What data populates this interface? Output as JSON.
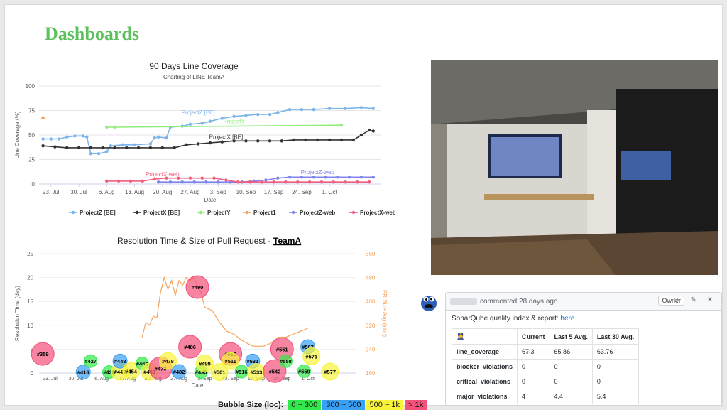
{
  "page": {
    "title": "Dashboards"
  },
  "chart_data": [
    {
      "type": "line",
      "title": "90 Days Line Coverage",
      "subtitle": "Charting of LINE TeamA",
      "xlabel": "Date",
      "ylabel": "Line Coverage (%)",
      "ylim": [
        0,
        100
      ],
      "yticks": [
        0,
        25,
        50,
        75,
        100
      ],
      "x_ticks": [
        "23. Jul",
        "30. Jul",
        "6. Aug",
        "13. Aug",
        "20. Aug",
        "27. Aug",
        "3. Sep",
        "10. Sep",
        "17. Sep",
        "24. Sep",
        "1. Oct"
      ],
      "xlim": [
        -3,
        83
      ],
      "series": [
        {
          "name": "ProjectZ [BE]",
          "color": "#7cb5ec",
          "label": "ProjectZ [BE]",
          "label_at": [
            37,
            71
          ],
          "points": [
            [
              -2,
              46
            ],
            [
              0,
              46
            ],
            [
              2,
              46
            ],
            [
              4,
              48
            ],
            [
              6,
              49
            ],
            [
              8,
              49
            ],
            [
              9,
              48
            ],
            [
              10,
              31
            ],
            [
              12,
              31
            ],
            [
              14,
              33
            ],
            [
              15,
              39
            ],
            [
              18,
              40
            ],
            [
              21,
              40
            ],
            [
              25,
              41
            ],
            [
              26,
              47
            ],
            [
              27,
              48
            ],
            [
              29,
              47
            ],
            [
              30,
              58
            ],
            [
              33,
              59
            ],
            [
              35,
              61
            ],
            [
              38,
              62
            ],
            [
              40,
              64
            ],
            [
              43,
              67
            ],
            [
              46,
              69
            ],
            [
              49,
              70
            ],
            [
              52,
              71
            ],
            [
              55,
              71
            ],
            [
              57,
              73
            ],
            [
              60,
              76
            ],
            [
              63,
              76
            ],
            [
              66,
              76
            ],
            [
              70,
              77
            ],
            [
              74,
              77
            ],
            [
              78,
              78
            ],
            [
              81,
              77
            ]
          ]
        },
        {
          "name": "ProjectX [BE]",
          "color": "#333333",
          "label": "ProjectX [BE]",
          "label_at": [
            44,
            46
          ],
          "points": [
            [
              -2,
              39
            ],
            [
              1,
              38
            ],
            [
              4,
              37
            ],
            [
              7,
              37
            ],
            [
              10,
              37
            ],
            [
              13,
              37
            ],
            [
              16,
              37
            ],
            [
              19,
              37
            ],
            [
              22,
              37
            ],
            [
              25,
              37
            ],
            [
              28,
              37
            ],
            [
              31,
              37
            ],
            [
              34,
              40
            ],
            [
              37,
              41
            ],
            [
              40,
              42
            ],
            [
              43,
              43
            ],
            [
              46,
              44
            ],
            [
              49,
              44
            ],
            [
              52,
              44
            ],
            [
              55,
              44
            ],
            [
              58,
              44
            ],
            [
              61,
              45
            ],
            [
              64,
              45
            ],
            [
              67,
              45
            ],
            [
              70,
              45
            ],
            [
              73,
              45
            ],
            [
              76,
              45
            ],
            [
              78,
              50
            ],
            [
              80,
              55
            ],
            [
              81,
              54
            ]
          ]
        },
        {
          "name": "ProjectY",
          "color": "#90ed7d",
          "label": "ProjectY",
          "label_at": [
            46,
            62
          ],
          "points": [
            [
              14,
              58
            ],
            [
              16,
              58
            ],
            [
              73,
              60
            ]
          ]
        },
        {
          "name": "Project1",
          "color": "#f7a35c",
          "label": "",
          "label_at": null,
          "points": [
            [
              -2,
              68
            ]
          ]
        },
        {
          "name": "ProjectZ-web",
          "color": "#8085e9",
          "label": "ProjectZ-web",
          "label_at": [
            67,
            10
          ],
          "points": [
            [
              27,
              2
            ],
            [
              30,
              2
            ],
            [
              33,
              2
            ],
            [
              36,
              2
            ],
            [
              39,
              2
            ],
            [
              42,
              2
            ],
            [
              45,
              2
            ],
            [
              48,
              2
            ],
            [
              51,
              3
            ],
            [
              54,
              4
            ],
            [
              57,
              6
            ],
            [
              60,
              7
            ],
            [
              63,
              7
            ],
            [
              66,
              7
            ],
            [
              69,
              7
            ],
            [
              72,
              7
            ],
            [
              75,
              7
            ],
            [
              78,
              7
            ],
            [
              81,
              7
            ]
          ]
        },
        {
          "name": "ProjectX-web",
          "color": "#f15c80",
          "label": "ProjectX-web",
          "label_at": [
            28,
            8
          ],
          "points": [
            [
              14,
              3
            ],
            [
              17,
              3
            ],
            [
              20,
              3
            ],
            [
              23,
              3
            ],
            [
              26,
              5
            ],
            [
              29,
              6
            ],
            [
              32,
              6
            ],
            [
              35,
              6
            ],
            [
              38,
              6
            ],
            [
              41,
              6
            ],
            [
              44,
              4
            ],
            [
              47,
              2
            ],
            [
              50,
              2
            ],
            [
              53,
              2
            ],
            [
              56,
              2
            ],
            [
              59,
              2
            ],
            [
              62,
              2
            ],
            [
              65,
              2
            ],
            [
              68,
              2
            ],
            [
              71,
              2
            ],
            [
              74,
              2
            ],
            [
              77,
              2
            ],
            [
              80,
              2
            ]
          ]
        }
      ],
      "legend": "bottom"
    },
    {
      "type": "scatter",
      "title": "Resolution Time & Size of Pull Request - ",
      "title_emph": "TeamA",
      "xlabel": "Date",
      "ylabel": "Resolution Time (day)",
      "ylabel_right": "PR Size Avg (kloc)",
      "ylim": [
        0,
        25
      ],
      "yticks": [
        0,
        5,
        10,
        15,
        20,
        25
      ],
      "yticks_right": [
        "160",
        "240",
        "320",
        "400",
        "480",
        "560"
      ],
      "x_ticks": [
        "23. Jul",
        "30. Jul",
        "6. Aug",
        "13. Aug",
        "20. Aug",
        "27. Aug",
        "3. Sep",
        "10. Sep",
        "17. Sep",
        "24. Sep",
        "1. Oct"
      ],
      "xlim": [
        -3,
        83
      ],
      "bubbles": [
        {
          "label": "#359",
          "x": -2,
          "y": 4,
          "size": "gt1k"
        },
        {
          "label": "#416",
          "x": 9,
          "y": 0.2,
          "size": "300-500"
        },
        {
          "label": "#427",
          "x": 11,
          "y": 2.5,
          "size": "0-300"
        },
        {
          "label": "#432",
          "x": 16,
          "y": 0.2,
          "size": "0-300"
        },
        {
          "label": "#447",
          "x": 19,
          "y": 0.3,
          "size": "500-1k"
        },
        {
          "label": "#448",
          "x": 19,
          "y": 2.5,
          "size": "300-500"
        },
        {
          "label": "#454",
          "x": 22,
          "y": 0.4,
          "size": "500-1k"
        },
        {
          "label": "#464",
          "x": 25,
          "y": 2,
          "size": "0-300"
        },
        {
          "label": "#466",
          "x": 27,
          "y": 0.3,
          "size": "500-1k"
        },
        {
          "label": "#473",
          "x": 30,
          "y": 1,
          "size": "gt1k"
        },
        {
          "label": "#478",
          "x": 32,
          "y": 2.5,
          "size": "500-1k"
        },
        {
          "label": "#482",
          "x": 35,
          "y": 0.3,
          "size": "300-500"
        },
        {
          "label": "#486",
          "x": 38,
          "y": 5.5,
          "size": "gt1k"
        },
        {
          "label": "#490",
          "x": 40,
          "y": 18,
          "size": "gt1k"
        },
        {
          "label": "#495",
          "x": 41,
          "y": 0.2,
          "size": "0-300"
        },
        {
          "label": "#499",
          "x": 42,
          "y": 2,
          "size": "500-1k"
        },
        {
          "label": "#501",
          "x": 46,
          "y": 0.2,
          "size": "500-1k"
        },
        {
          "label": "#510",
          "x": 49,
          "y": 4,
          "size": "gt1k"
        },
        {
          "label": "#511",
          "x": 49,
          "y": 2.5,
          "size": "500-1k"
        },
        {
          "label": "#516",
          "x": 52,
          "y": 0.3,
          "size": "0-300"
        },
        {
          "label": "#531",
          "x": 55,
          "y": 2.5,
          "size": "300-500"
        },
        {
          "label": "#533",
          "x": 56,
          "y": 0.2,
          "size": "500-1k"
        },
        {
          "label": "#542",
          "x": 61,
          "y": 0.4,
          "size": "gt1k"
        },
        {
          "label": "#551",
          "x": 63,
          "y": 5,
          "size": "gt1k"
        },
        {
          "label": "#558",
          "x": 64,
          "y": 2.5,
          "size": "0-300"
        },
        {
          "label": "#559",
          "x": 69,
          "y": 0.4,
          "size": "0-300"
        },
        {
          "label": "#567",
          "x": 70,
          "y": 5.5,
          "size": "300-500"
        },
        {
          "label": "#571",
          "x": 71,
          "y": 3.5,
          "size": "500-1k"
        },
        {
          "label": "#577",
          "x": 76,
          "y": 0.3,
          "size": "500-1k"
        }
      ],
      "pr_size_line": [
        [
          25,
          280
        ],
        [
          26,
          330
        ],
        [
          27,
          320
        ],
        [
          28,
          350
        ],
        [
          29,
          345
        ],
        [
          30,
          430
        ],
        [
          31,
          480
        ],
        [
          32,
          440
        ],
        [
          33,
          470
        ],
        [
          34,
          420
        ],
        [
          35,
          470
        ],
        [
          36,
          455
        ],
        [
          37,
          480
        ],
        [
          38,
          470
        ],
        [
          39,
          480
        ],
        [
          40,
          455
        ],
        [
          41,
          430
        ],
        [
          42,
          380
        ],
        [
          44,
          370
        ],
        [
          46,
          330
        ],
        [
          48,
          300
        ],
        [
          50,
          290
        ],
        [
          52,
          270
        ],
        [
          55,
          250
        ],
        [
          58,
          250
        ],
        [
          60,
          260
        ],
        [
          62,
          280
        ],
        [
          64,
          280
        ],
        [
          66,
          290
        ],
        [
          68,
          300
        ],
        [
          70,
          310
        ]
      ],
      "size_legend_title": "Bubble Size (loc):",
      "size_legend": [
        {
          "key": "0-300",
          "label": "0 ~ 300",
          "color": "#33e84a"
        },
        {
          "key": "300-500",
          "label": "300 ~ 500",
          "color": "#39a0f5"
        },
        {
          "key": "500-1k",
          "label": "500 ~ 1k",
          "color": "#f7f33a"
        },
        {
          "key": "gt1k",
          "label": "> 1k",
          "color": "#f3517a"
        }
      ]
    }
  ],
  "comment": {
    "meta": "commented 28 days ago",
    "badge": "Owner",
    "icons": "☺ ✎ ✕",
    "intro": "SonarQube quality index & report: ",
    "link": "here",
    "table": {
      "headers": [
        "Current",
        "Last 5 Avg.",
        "Last 30 Avg."
      ],
      "rows": [
        {
          "metric": "line_coverage",
          "current": "67.3",
          "last5": "65.86",
          "last30": "63.76"
        },
        {
          "metric": "blocker_violations",
          "current": "0",
          "last5": "0",
          "last30": "0"
        },
        {
          "metric": "critical_violations",
          "current": "0",
          "last5": "0",
          "last30": "0"
        },
        {
          "metric": "major_violations",
          "current": "4",
          "last5": "4.4",
          "last30": "5.4"
        }
      ]
    }
  }
}
